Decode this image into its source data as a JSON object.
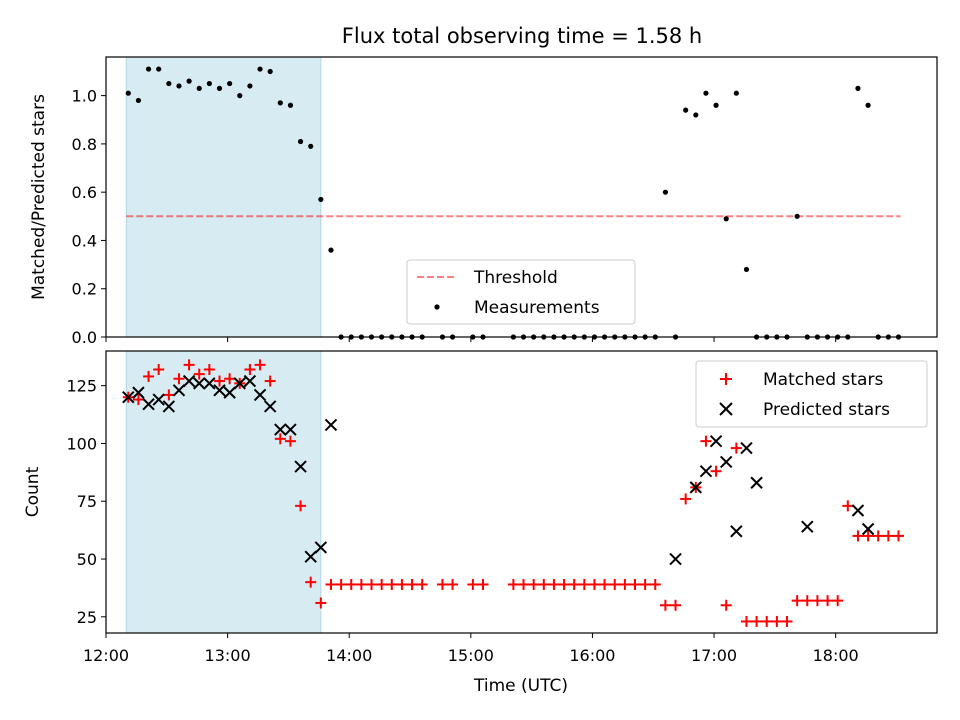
{
  "title": "Flux total observing time = 1.58 h",
  "colors": {
    "shade": "#add8e6",
    "threshold": "#ff0000",
    "measurement": "#000000",
    "matched": "#ff0000",
    "predicted": "#000000"
  },
  "chart_data": [
    {
      "type": "scatter",
      "ylabel": "Matched/Predicted stars",
      "ylim": [
        0,
        1.16
      ],
      "yticks": [
        0.0,
        0.2,
        0.4,
        0.6,
        0.8,
        1.0
      ],
      "ytick_labels": [
        "0.0",
        "0.2",
        "0.4",
        "0.6",
        "0.8",
        "1.0"
      ],
      "xlim": [
        "12:00",
        "18:50"
      ],
      "shaded_span": [
        "12:10",
        "13:46"
      ],
      "legend": {
        "position": "lower center",
        "entries": [
          {
            "label": "Threshold",
            "style": "dashed-line"
          },
          {
            "label": "Measurements",
            "style": "dot"
          }
        ]
      },
      "series": [
        {
          "name": "Threshold",
          "kind": "line",
          "x": [
            "12:10",
            "18:32"
          ],
          "y": [
            0.5,
            0.5
          ]
        },
        {
          "name": "Measurements",
          "kind": "points",
          "x": [
            "12:11",
            "12:16",
            "12:21",
            "12:26",
            "12:31",
            "12:36",
            "12:41",
            "12:46",
            "12:51",
            "12:56",
            "13:01",
            "13:06",
            "13:11",
            "13:16",
            "13:21",
            "13:26",
            "13:31",
            "13:36",
            "13:41",
            "13:46",
            "13:51",
            "13:56",
            "14:01",
            "14:06",
            "14:11",
            "14:16",
            "14:21",
            "14:26",
            "14:31",
            "14:36",
            "14:46",
            "14:51",
            "15:01",
            "15:06",
            "15:21",
            "15:26",
            "15:31",
            "15:36",
            "15:41",
            "15:46",
            "15:51",
            "15:56",
            "16:01",
            "16:06",
            "16:11",
            "16:16",
            "16:21",
            "16:26",
            "16:31",
            "16:36",
            "16:41",
            "16:46",
            "16:51",
            "16:56",
            "17:01",
            "17:06",
            "17:11",
            "17:16",
            "17:21",
            "17:26",
            "17:31",
            "17:36",
            "17:41",
            "17:46",
            "17:51",
            "17:56",
            "18:01",
            "18:06",
            "18:11",
            "18:16",
            "18:21",
            "18:26",
            "18:31"
          ],
          "y": [
            1.01,
            0.98,
            1.11,
            1.11,
            1.05,
            1.04,
            1.06,
            1.03,
            1.05,
            1.03,
            1.05,
            1.0,
            1.04,
            1.11,
            1.1,
            0.97,
            0.96,
            0.81,
            0.79,
            0.57,
            0.36,
            0.0,
            0.0,
            0.0,
            0.0,
            0.0,
            0.0,
            0.0,
            0.0,
            0.0,
            0.0,
            0.0,
            0.0,
            0.0,
            0.0,
            0.0,
            0.0,
            0.0,
            0.0,
            0.0,
            0.0,
            0.0,
            0.0,
            0.0,
            0.0,
            0.0,
            0.0,
            0.0,
            0.0,
            0.6,
            0.0,
            0.94,
            0.92,
            1.01,
            0.96,
            0.49,
            1.01,
            0.28,
            0.0,
            0.0,
            0.0,
            0.0,
            0.5,
            0.0,
            0.0,
            0.0,
            0.0,
            0.0,
            1.03,
            0.96,
            0.0,
            0.0,
            0.0
          ]
        }
      ]
    },
    {
      "type": "scatter",
      "xlabel": "Time (UTC)",
      "ylabel": "Count",
      "ylim": [
        18,
        140
      ],
      "yticks": [
        25,
        50,
        75,
        100,
        125
      ],
      "ytick_labels": [
        "25",
        "50",
        "75",
        "100",
        "125"
      ],
      "xlim": [
        "12:00",
        "18:50"
      ],
      "xticks": [
        "12:00",
        "13:00",
        "14:00",
        "15:00",
        "16:00",
        "17:00",
        "18:00"
      ],
      "xtick_labels": [
        "12:00",
        "13:00",
        "14:00",
        "15:00",
        "16:00",
        "17:00",
        "18:00"
      ],
      "shaded_span": [
        "12:10",
        "13:46"
      ],
      "legend": {
        "position": "upper right",
        "entries": [
          {
            "label": "Matched stars",
            "style": "plus"
          },
          {
            "label": "Predicted stars",
            "style": "x"
          }
        ]
      },
      "series": [
        {
          "name": "Matched stars",
          "marker": "+",
          "x": [
            "12:11",
            "12:16",
            "12:21",
            "12:26",
            "12:31",
            "12:36",
            "12:41",
            "12:46",
            "12:51",
            "12:56",
            "13:01",
            "13:06",
            "13:11",
            "13:16",
            "13:21",
            "13:26",
            "13:31",
            "13:36",
            "13:41",
            "13:46",
            "13:51",
            "13:56",
            "14:01",
            "14:06",
            "14:11",
            "14:16",
            "14:21",
            "14:26",
            "14:31",
            "14:36",
            "14:46",
            "14:51",
            "15:01",
            "15:06",
            "15:21",
            "15:26",
            "15:31",
            "15:36",
            "15:41",
            "15:46",
            "15:51",
            "15:56",
            "16:01",
            "16:06",
            "16:11",
            "16:16",
            "16:21",
            "16:26",
            "16:31",
            "16:36",
            "16:41",
            "16:46",
            "16:51",
            "16:56",
            "17:01",
            "17:06",
            "17:11",
            "17:16",
            "17:21",
            "17:26",
            "17:31",
            "17:36",
            "17:41",
            "17:46",
            "17:51",
            "17:56",
            "18:01",
            "18:06",
            "18:11",
            "18:16",
            "18:21",
            "18:26",
            "18:31"
          ],
          "y": [
            120,
            119,
            129,
            132,
            121,
            128,
            134,
            130,
            132,
            127,
            128,
            126,
            132,
            134,
            127,
            102,
            101,
            73,
            40,
            31,
            39,
            39,
            39,
            39,
            39,
            39,
            39,
            39,
            39,
            39,
            39,
            39,
            39,
            39,
            39,
            39,
            39,
            39,
            39,
            39,
            39,
            39,
            39,
            39,
            39,
            39,
            39,
            39,
            39,
            30,
            30,
            76,
            81,
            101,
            88,
            30,
            98,
            23,
            23,
            23,
            23,
            23,
            32,
            32,
            32,
            32,
            32,
            73,
            60,
            60,
            60,
            60,
            60
          ]
        },
        {
          "name": "Predicted stars",
          "marker": "x",
          "x": [
            "12:11",
            "12:16",
            "12:21",
            "12:26",
            "12:31",
            "12:36",
            "12:41",
            "12:46",
            "12:51",
            "12:56",
            "13:01",
            "13:06",
            "13:11",
            "13:16",
            "13:21",
            "13:26",
            "13:31",
            "13:36",
            "13:41",
            "13:46",
            "13:51",
            "16:41",
            "16:51",
            "16:56",
            "17:01",
            "17:06",
            "17:11",
            "17:16",
            "17:21",
            "17:46",
            "18:11",
            "18:16"
          ],
          "y": [
            120,
            122,
            117,
            119,
            116,
            123,
            127,
            126,
            126,
            123,
            122,
            126,
            127,
            121,
            116,
            106,
            106,
            90,
            51,
            55,
            108,
            50,
            81,
            88,
            101,
            92,
            62,
            98,
            83,
            64,
            71,
            63
          ]
        }
      ]
    }
  ]
}
